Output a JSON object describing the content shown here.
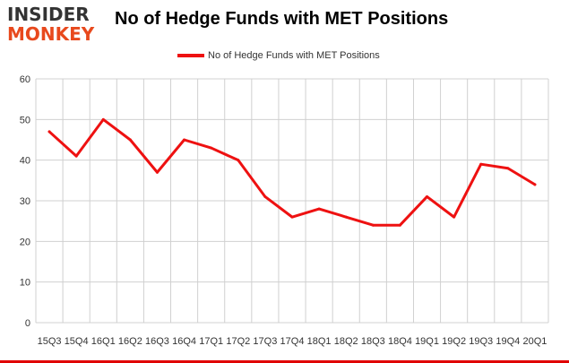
{
  "logo": {
    "top": "INSIDER",
    "bottom": "MONKEY"
  },
  "colors": {
    "series": "#ee1111",
    "logo_accent": "#e8491d",
    "frame": "#e00000",
    "grid": "#d0d0d0"
  },
  "chart_data": {
    "type": "line",
    "title": "No of Hedge Funds with MET Positions",
    "xlabel": "",
    "ylabel": "",
    "ylim": [
      0,
      60
    ],
    "yticks": [
      0,
      10,
      20,
      30,
      40,
      50,
      60
    ],
    "grid": true,
    "legend_position": "top-center",
    "categories": [
      "15Q3",
      "15Q4",
      "16Q1",
      "16Q2",
      "16Q3",
      "16Q4",
      "17Q1",
      "17Q2",
      "17Q3",
      "17Q4",
      "18Q1",
      "18Q2",
      "18Q3",
      "18Q4",
      "19Q1",
      "19Q2",
      "19Q3",
      "19Q4",
      "20Q1"
    ],
    "series": [
      {
        "name": "No of Hedge Funds with MET Positions",
        "values": [
          47,
          41,
          50,
          45,
          37,
          45,
          43,
          40,
          31,
          26,
          28,
          26,
          24,
          24,
          31,
          26,
          39,
          38,
          34
        ]
      }
    ]
  }
}
